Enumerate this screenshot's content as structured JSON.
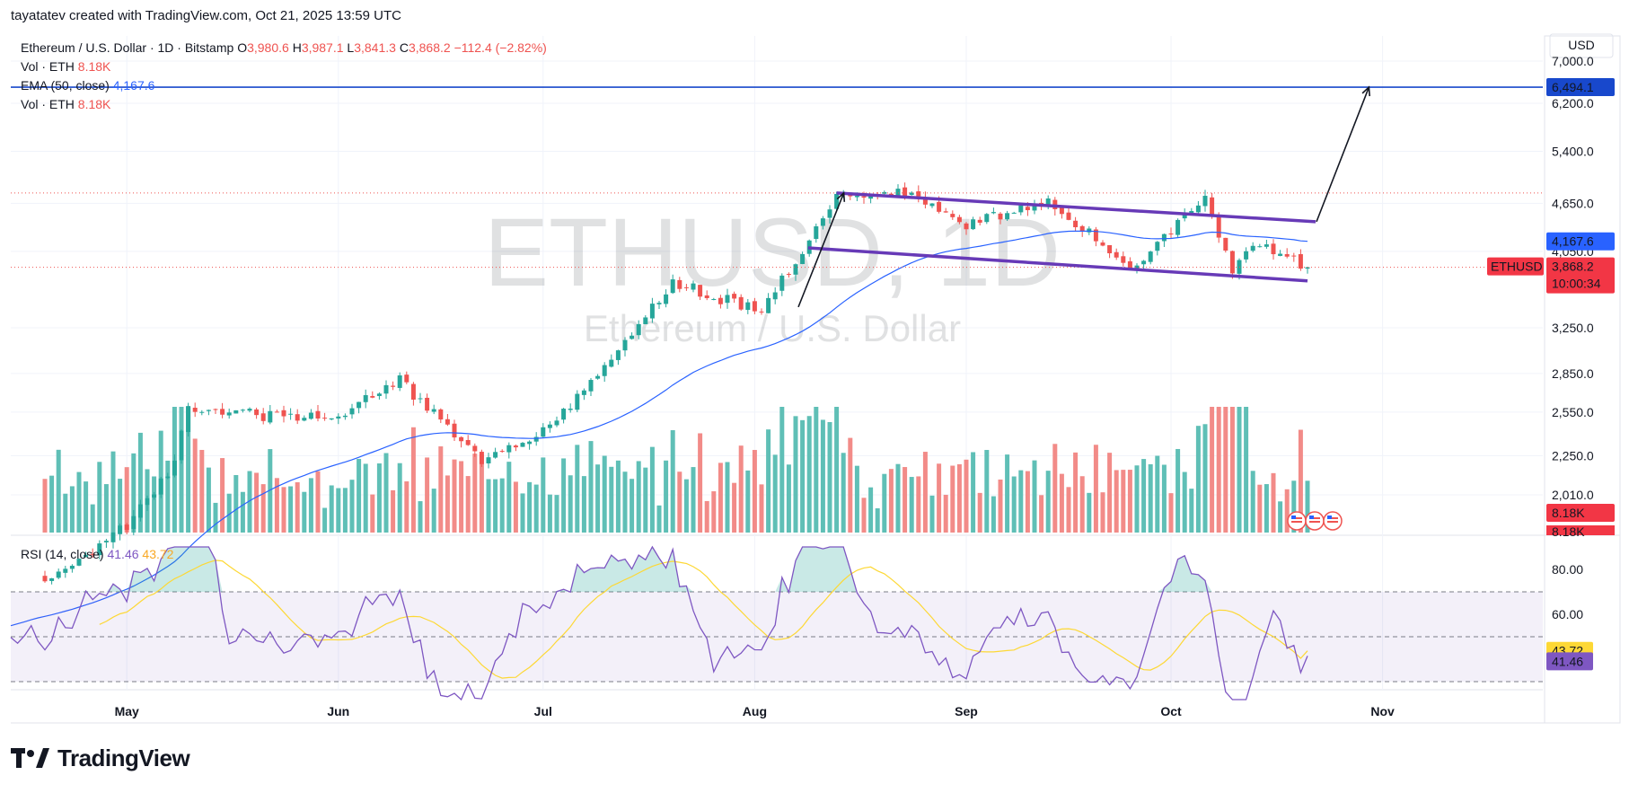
{
  "attribution": "tayatatev created with TradingView.com, Oct 21, 2025 13:59 UTC",
  "legend": {
    "symbol": "Ethereum / U.S. Dollar · 1D · Bitstamp",
    "o_label": "O",
    "o_value": "3,980.6",
    "h_label": "H",
    "h_value": "3,987.1",
    "l_label": "L",
    "l_value": "3,841.3",
    "c_label": "C",
    "c_value": "3,868.2",
    "change": "−112.4 (−2.82%)",
    "vol_label": "Vol · ETH",
    "vol_value": "8.18K",
    "ema_label": "EMA (50, close)",
    "ema_value": "4,167.6",
    "vol2_label": "Vol · ETH",
    "vol2_value": "8.18K",
    "rsi_label": "RSI (14, close)",
    "rsi_value": "41.46",
    "rsi_ma_value": "43.72"
  },
  "watermark": {
    "symbol": "ETHUSD, 1D",
    "name": "Ethereum / U.S. Dollar"
  },
  "currency": "USD",
  "price_axis": {
    "ticks": [
      "7,000.0",
      "6,200.0",
      "5,400.0",
      "4,650.0",
      "4,050.0",
      "3,250.0",
      "2,850.0",
      "2,550.0",
      "2,250.0",
      "2,010.0"
    ],
    "tick_values": [
      7000,
      6200,
      5400,
      4650,
      4050,
      3250,
      2850,
      2550,
      2250,
      2010
    ]
  },
  "price_labels": {
    "target": "6,494.1",
    "ema": "4,167.6",
    "symbol_tag": "ETHUSD",
    "last_price": "3,868.2",
    "countdown": "10:00:34",
    "vol_tag_1": "8.18K",
    "vol_tag_2": "8.18K"
  },
  "rsi_axis": {
    "ticks": [
      "80.00",
      "60.00"
    ],
    "tick_values": [
      80,
      60
    ],
    "rsi_tag": "41.46",
    "ma_tag": "43.72"
  },
  "time_axis": {
    "months": [
      "May",
      "Jun",
      "Jul",
      "Aug",
      "Sep",
      "Oct",
      "Nov"
    ]
  },
  "colors": {
    "up": "#26a69a",
    "down": "#ef5350",
    "ema": "#2962ff",
    "channel": "#673ab7",
    "rsi": "#7e57c2",
    "rsi_ma": "#fdd835",
    "target_line": "#1848cc",
    "up_vol": "#5fbfb6",
    "down_vol": "#f28b88"
  },
  "logo": "TradingView",
  "chart_data": {
    "type": "candlestick",
    "symbol": "ETHUSD",
    "timeframe": "1D",
    "price_range": [
      1800,
      7300
    ],
    "scale": "log",
    "key_levels": {
      "target": 6494.1,
      "ema50": 4167.6,
      "last": 3868.2
    },
    "channel": {
      "upper": [
        {
          "date": "2025-08-13",
          "price": 4790
        },
        {
          "date": "2025-10-21",
          "price": 4410
        }
      ],
      "lower": [
        {
          "date": "2025-08-10",
          "price": 4090
        },
        {
          "date": "2025-10-21",
          "price": 3720
        }
      ]
    },
    "impulse": {
      "from": {
        "date": "2025-08-07",
        "price": 3450
      },
      "to": {
        "date": "2025-08-13",
        "price": 4790
      }
    },
    "projection": {
      "from": {
        "date": "2025-10-21",
        "price": 4410
      },
      "to": {
        "date": "2025-10-30",
        "price": 6494
      }
    },
    "closes_sampled": [
      {
        "date": "2025-04-20",
        "close": 1590
      },
      {
        "date": "2025-05-01",
        "close": 1840
      },
      {
        "date": "2025-05-08",
        "close": 2200
      },
      {
        "date": "2025-05-10",
        "close": 2590
      },
      {
        "date": "2025-05-20",
        "close": 2530
      },
      {
        "date": "2025-06-01",
        "close": 2520
      },
      {
        "date": "2025-06-10",
        "close": 2790
      },
      {
        "date": "2025-06-22",
        "close": 2230
      },
      {
        "date": "2025-07-01",
        "close": 2420
      },
      {
        "date": "2025-07-11",
        "close": 2950
      },
      {
        "date": "2025-07-20",
        "close": 3700
      },
      {
        "date": "2025-08-02",
        "close": 3400
      },
      {
        "date": "2025-08-13",
        "close": 4750
      },
      {
        "date": "2025-08-24",
        "close": 4800
      },
      {
        "date": "2025-09-01",
        "close": 4360
      },
      {
        "date": "2025-09-13",
        "close": 4700
      },
      {
        "date": "2025-09-25",
        "close": 3870
      },
      {
        "date": "2025-10-06",
        "close": 4680
      },
      {
        "date": "2025-10-10",
        "close": 3800
      },
      {
        "date": "2025-10-13",
        "close": 4150
      },
      {
        "date": "2025-10-21",
        "close": 3868.2
      }
    ],
    "rsi": {
      "last": 41.46,
      "ma_last": 43.72,
      "range": [
        20,
        95
      ],
      "levels": [
        70,
        50,
        30
      ]
    },
    "volume_last": "8.18K"
  }
}
